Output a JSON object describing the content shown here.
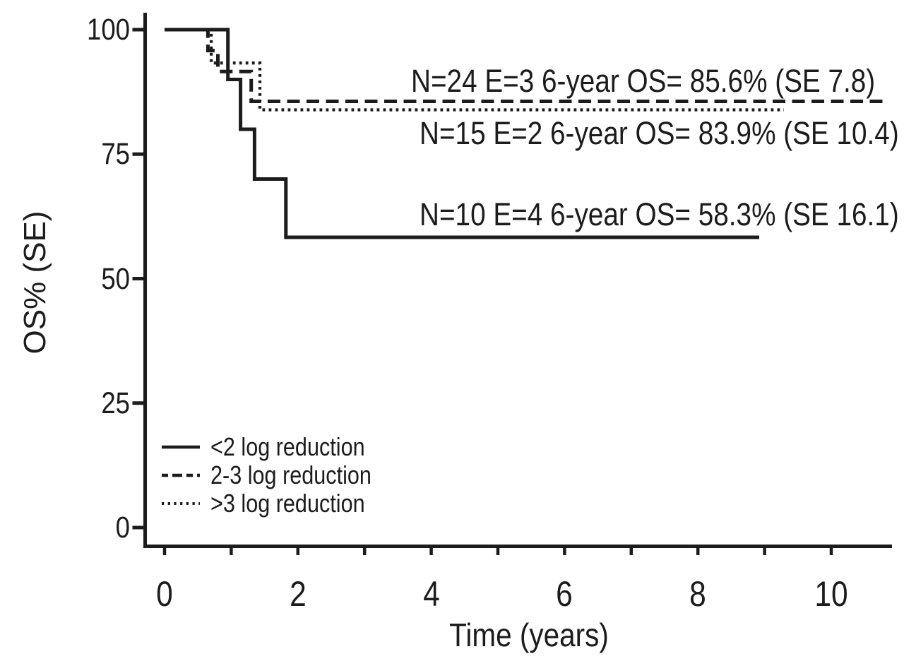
{
  "figure": {
    "background": "#ffffff",
    "ink_color": "#1c1c1c"
  },
  "chart_data": {
    "type": "line",
    "subtype": "kaplan_meier_step",
    "title": "",
    "xlabel": "Time (years)",
    "ylabel": "OS% (SE)",
    "xlim": [
      0,
      11.2
    ],
    "ylim": [
      0,
      100
    ],
    "grid": false,
    "legend_position": "inside-bottom-left",
    "x_ticks": [
      0,
      1,
      2,
      3,
      4,
      5,
      6,
      7,
      8,
      9,
      10
    ],
    "x_tick_labels": [
      {
        "value": 0,
        "label": "0"
      },
      {
        "value": 2,
        "label": "2"
      },
      {
        "value": 4,
        "label": "4"
      },
      {
        "value": 6,
        "label": "6"
      },
      {
        "value": 8,
        "label": "8"
      },
      {
        "value": 10,
        "label": "10"
      }
    ],
    "y_tick_labels": [
      {
        "value": 100,
        "label": "100"
      },
      {
        "value": 75,
        "label": "75"
      },
      {
        "value": 50,
        "label": "50"
      },
      {
        "value": 25,
        "label": "25"
      },
      {
        "value": 0,
        "label": "0"
      }
    ],
    "series": [
      {
        "name": "2-3 log reduction",
        "style": "dashed",
        "n": 24,
        "events": 3,
        "six_year_os_pct": 85.6,
        "se": 7.8,
        "points": [
          [
            0,
            100
          ],
          [
            0.65,
            100
          ],
          [
            0.65,
            95.8
          ],
          [
            0.8,
            95.8
          ],
          [
            0.8,
            91.6
          ],
          [
            1.3,
            91.6
          ],
          [
            1.3,
            85.6
          ],
          [
            10.77,
            85.6
          ]
        ]
      },
      {
        "name": ">3 log reduction",
        "style": "dotted",
        "n": 15,
        "events": 2,
        "six_year_os_pct": 83.9,
        "se": 10.4,
        "points": [
          [
            0,
            100
          ],
          [
            0.7,
            100
          ],
          [
            0.7,
            93.3
          ],
          [
            1.43,
            93.3
          ],
          [
            1.43,
            83.9
          ],
          [
            9.29,
            83.9
          ]
        ]
      },
      {
        "name": "<2 log reduction",
        "style": "solid",
        "n": 10,
        "events": 4,
        "six_year_os_pct": 58.3,
        "se": 16.1,
        "points": [
          [
            0,
            100
          ],
          [
            0.95,
            100
          ],
          [
            0.95,
            90
          ],
          [
            1.14,
            90
          ],
          [
            1.14,
            80
          ],
          [
            1.35,
            80
          ],
          [
            1.35,
            70
          ],
          [
            1.82,
            70
          ],
          [
            1.82,
            58.3
          ],
          [
            8.92,
            58.3
          ]
        ]
      }
    ],
    "annotations": [
      {
        "series": "2-3 log reduction",
        "text": "N=24 E=3 6-year OS= 85.6% (SE 7.8)"
      },
      {
        "series": ">3 log reduction",
        "text": "N=15 E=2 6-year OS= 83.9% (SE 10.4)"
      },
      {
        "series": "<2 log reduction",
        "text": "N=10 E=4 6-year OS= 58.3% (SE 16.1)"
      }
    ]
  },
  "legend": {
    "items": [
      {
        "label": "<2 log reduction",
        "style": "solid"
      },
      {
        "label": "2-3 log reduction",
        "style": "dashed"
      },
      {
        "label": ">3 log reduction",
        "style": "dotted"
      }
    ]
  }
}
